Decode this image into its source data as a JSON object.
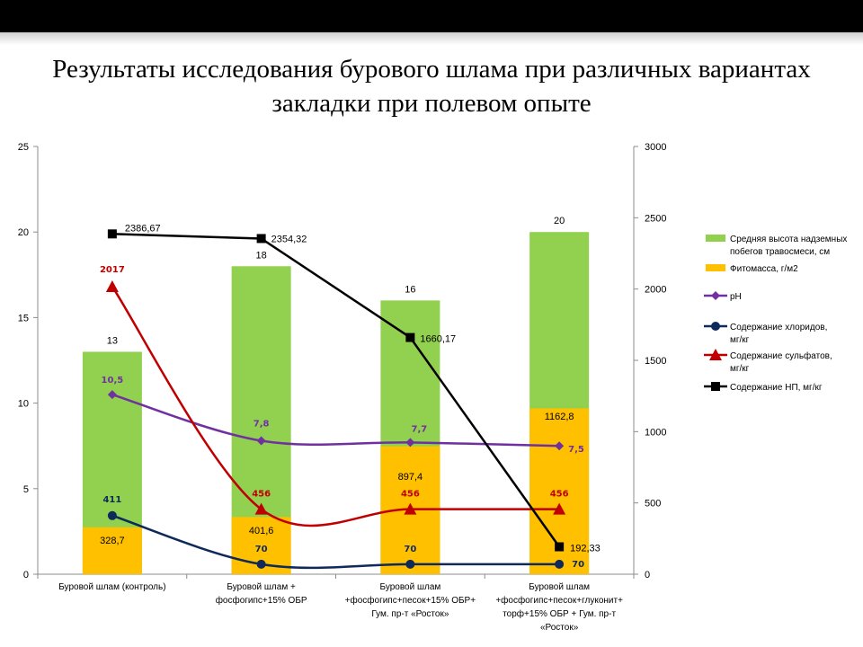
{
  "slide": {
    "title_line1": "Результаты исследования бурового шлама при различных вариантах",
    "title_line2": "закладки при полевом опыте"
  },
  "chart_data": {
    "type": "bar",
    "categories": [
      [
        "Буровой шлам (контроль)"
      ],
      [
        "Буровой шлам +",
        "фосфогипс+15% ОБР"
      ],
      [
        "Буровой шлам",
        "+фосфогипс+песок+15% ОБР+",
        "Гум. пр-т «Росток»"
      ],
      [
        "Буровой шлам",
        "+фосфогипс+песок+глуконит+",
        "торф+15% ОБР + Гум. пр-т",
        "«Росток»"
      ]
    ],
    "y_left": {
      "ylim": [
        0,
        25
      ],
      "ticks": [
        "0",
        "5",
        "10",
        "15",
        "20",
        "25"
      ]
    },
    "y_right": {
      "ylim": [
        0,
        3000
      ],
      "ticks": [
        "0",
        "500",
        "1000",
        "1500",
        "2000",
        "2500",
        "3000"
      ]
    },
    "bars": [
      {
        "name": "Средняя высота надземных побегов травосмеси, см",
        "axis": "left",
        "color": "#92d050",
        "values": [
          13,
          18,
          16,
          20
        ],
        "labels": [
          "13",
          "18",
          "16",
          "20"
        ]
      },
      {
        "name": "Фитомасса, г/м2",
        "axis": "right",
        "color": "#ffc000",
        "values": [
          328.7,
          401.6,
          897.4,
          1162.8
        ],
        "labels": [
          "328,7",
          "401,6",
          "897,4",
          "1162,8"
        ]
      }
    ],
    "lines": [
      {
        "name": "рН",
        "axis": "left",
        "color": "#7030a0",
        "marker": "diamond",
        "values": [
          10.5,
          7.8,
          7.7,
          7.5
        ],
        "labels": [
          "10,5",
          "7,8",
          "7,7",
          "7,5"
        ]
      },
      {
        "name": "Содержание хлоридов, мг/кг",
        "axis": "right",
        "color": "#0f2a5a",
        "marker": "circle",
        "values": [
          411,
          70,
          70,
          70
        ],
        "labels": [
          "411",
          "70",
          "70",
          "70"
        ]
      },
      {
        "name": "Содержание сульфатов, мг/кг",
        "axis": "right",
        "color": "#c00000",
        "marker": "triangle",
        "values": [
          2017,
          456,
          456,
          456
        ],
        "labels": [
          "2017",
          "456",
          "456",
          "456"
        ]
      },
      {
        "name": "Содержание НП, мг/кг",
        "axis": "right",
        "color": "#000000",
        "marker": "square",
        "values": [
          2386.67,
          2354.32,
          1660.17,
          192.33
        ],
        "labels": [
          "2386,67",
          "2354,32",
          "1660,17",
          "192,33"
        ]
      }
    ],
    "legend": {
      "position": "right",
      "entries": [
        {
          "lines": [
            "Средняя высота надземных",
            "побегов травосмеси, см"
          ],
          "kind": "bar",
          "color": "#92d050"
        },
        {
          "lines": [
            "Фитомасса, г/м2"
          ],
          "kind": "bar",
          "color": "#ffc000"
        },
        {
          "lines": [
            "рН"
          ],
          "kind": "line",
          "color": "#7030a0",
          "marker": "diamond"
        },
        {
          "lines": [
            "Содержание хлоридов,",
            "мг/кг"
          ],
          "kind": "line",
          "color": "#0f2a5a",
          "marker": "circle"
        },
        {
          "lines": [
            "Содержание сульфатов,",
            "мг/кг"
          ],
          "kind": "line",
          "color": "#c00000",
          "marker": "triangle"
        },
        {
          "lines": [
            "Содержание НП, мг/кг"
          ],
          "kind": "line",
          "color": "#000000",
          "marker": "square"
        }
      ]
    },
    "grid": false
  }
}
